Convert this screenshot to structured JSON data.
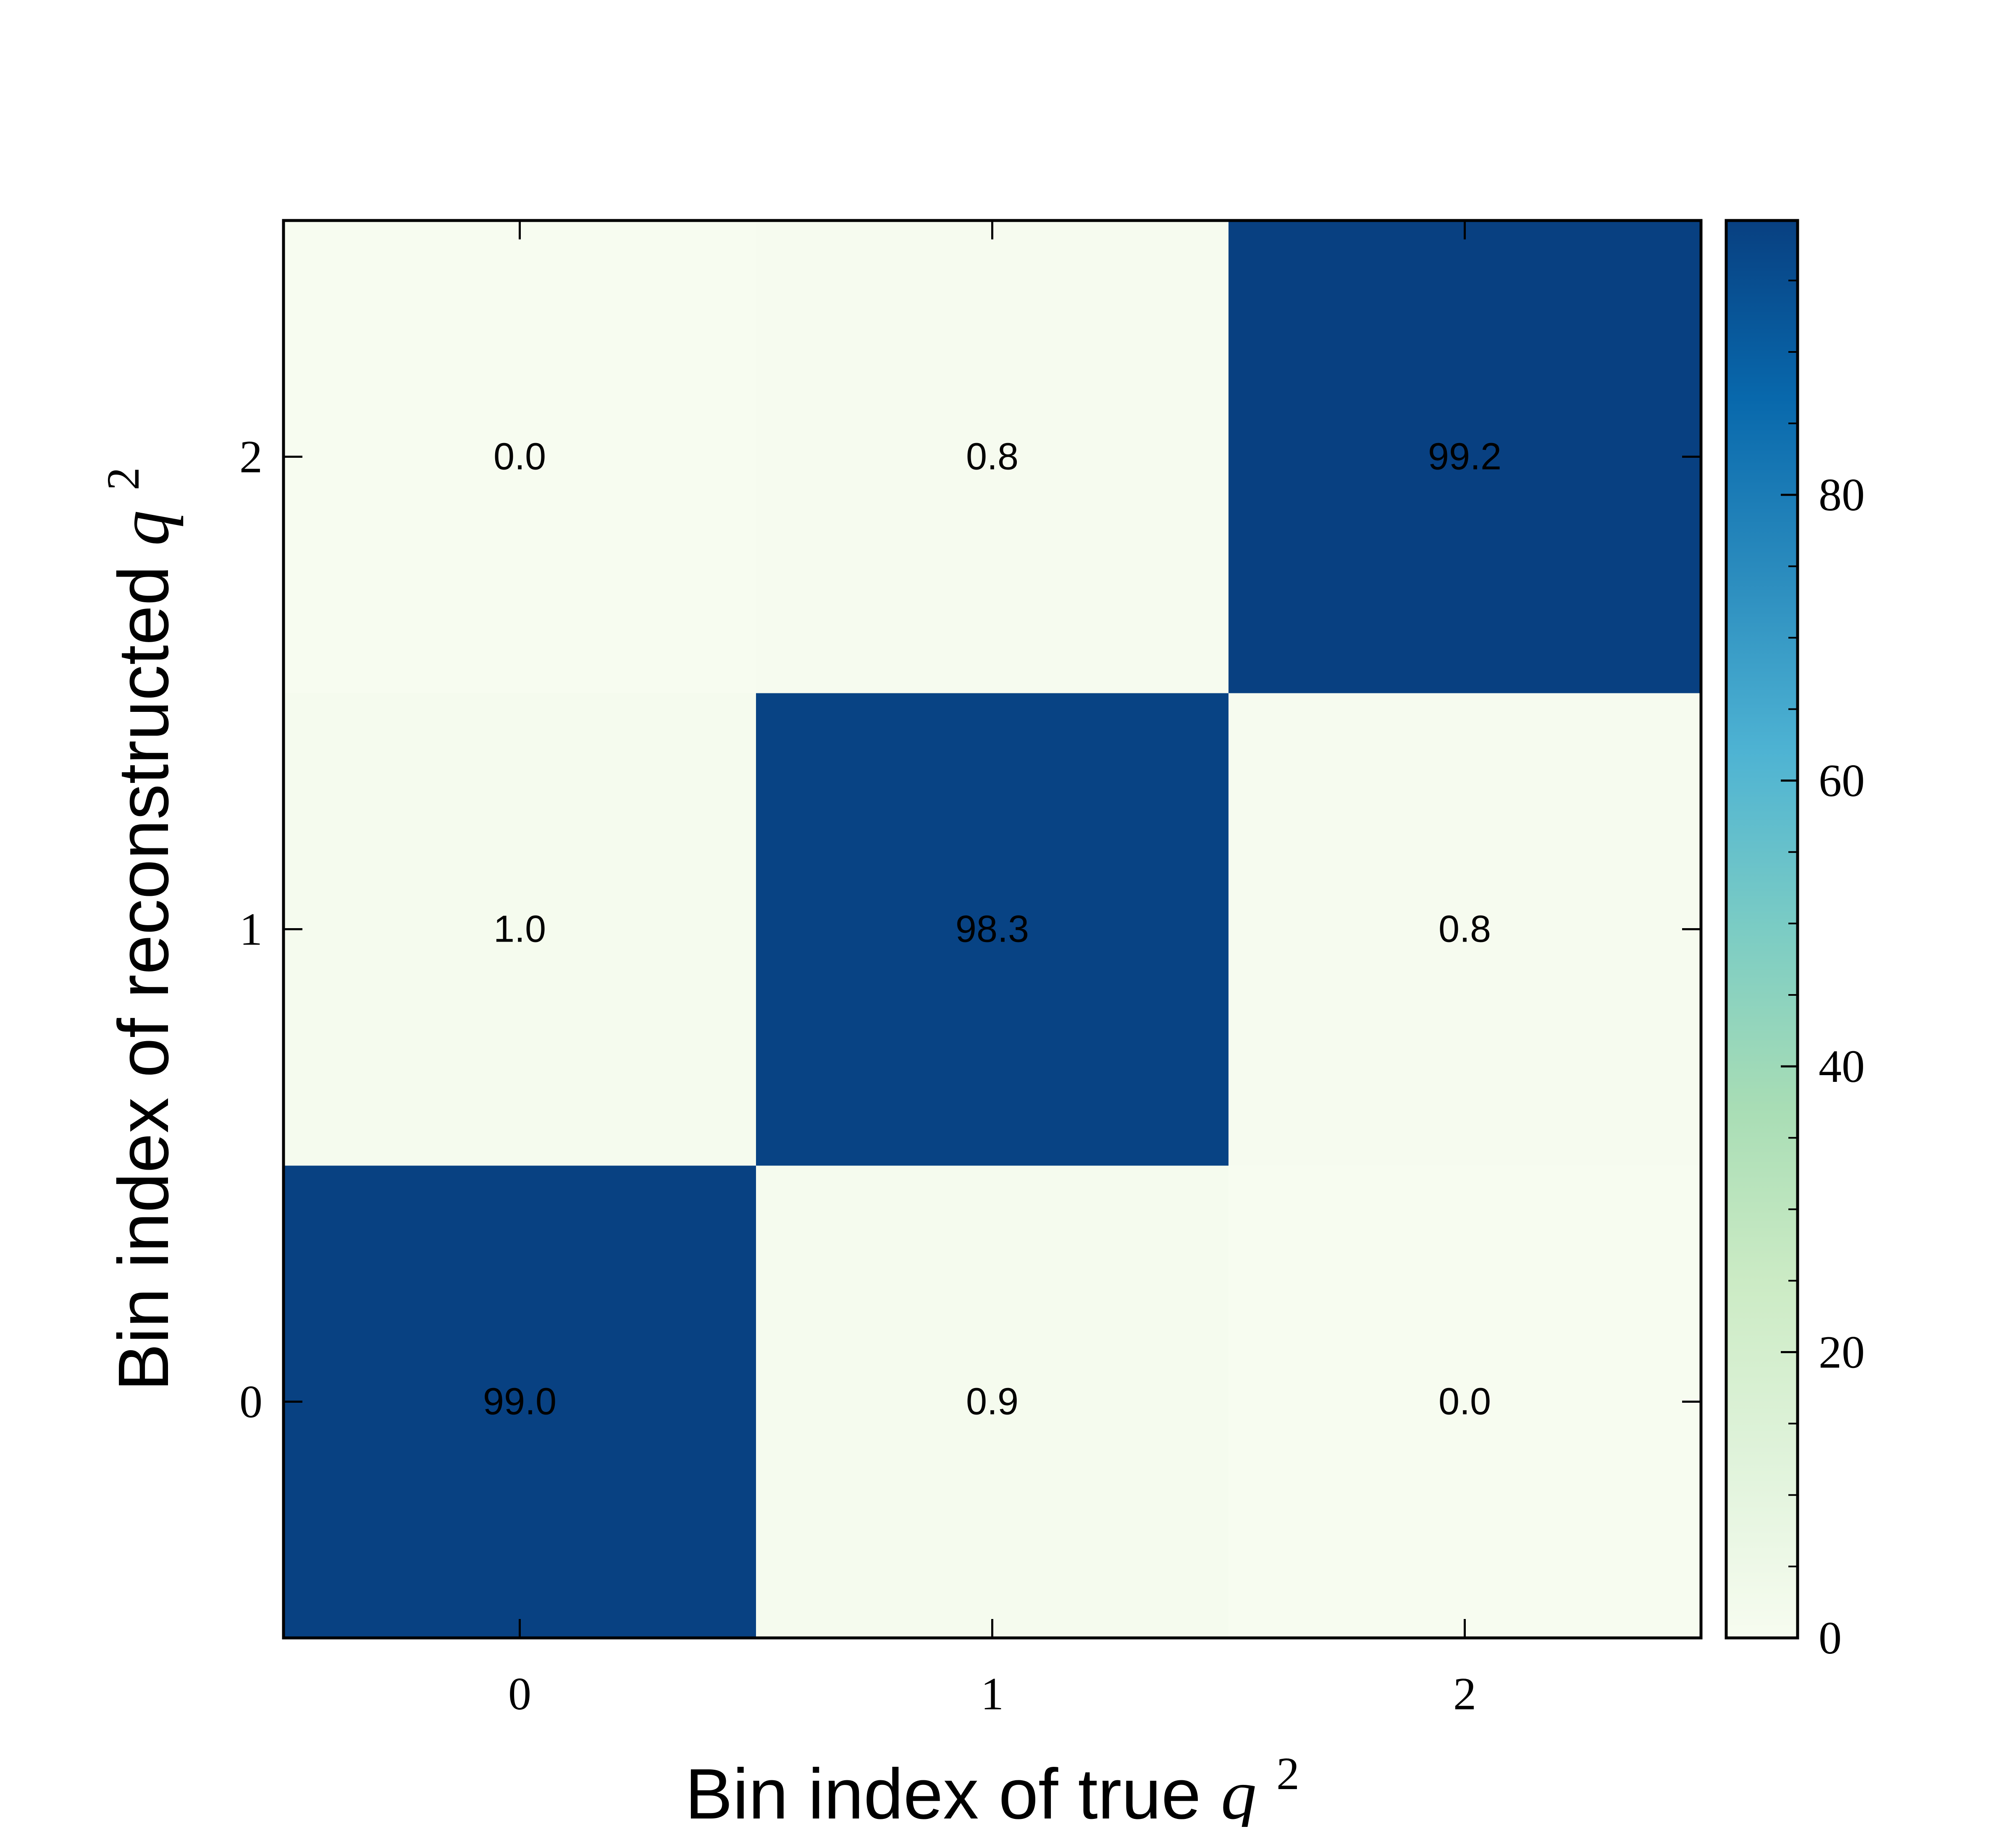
{
  "chart_data": {
    "type": "heatmap",
    "title": "",
    "xlabel": "Bin index of true",
    "ylabel": "Bin index of reconstructed",
    "label_variable": "q",
    "label_exponent": "2",
    "x_categories": [
      "0",
      "1",
      "2"
    ],
    "y_categories": [
      "0",
      "1",
      "2"
    ],
    "values": [
      [
        99.0,
        0.9,
        0.0
      ],
      [
        1.0,
        98.3,
        0.8
      ],
      [
        0.0,
        0.8,
        99.2
      ]
    ],
    "value_labels": [
      [
        "99.0",
        "0.9",
        "0.0"
      ],
      [
        "1.0",
        "98.3",
        "0.8"
      ],
      [
        "0.0",
        "0.8",
        "99.2"
      ]
    ],
    "colorbar": {
      "range": [
        0,
        99.2
      ],
      "ticks": [
        0,
        20,
        40,
        60,
        80
      ],
      "tick_labels": [
        "0",
        "20",
        "40",
        "60",
        "80"
      ],
      "minor_step": 5,
      "colormap": "GnBu",
      "colors": [
        "#f7fcf0",
        "#e0f3db",
        "#ccebc5",
        "#a8ddb5",
        "#7bccc4",
        "#4eb3d3",
        "#2b8cbe",
        "#0868ac",
        "#084081"
      ]
    },
    "grid": false,
    "legend": "colorbar-right"
  }
}
